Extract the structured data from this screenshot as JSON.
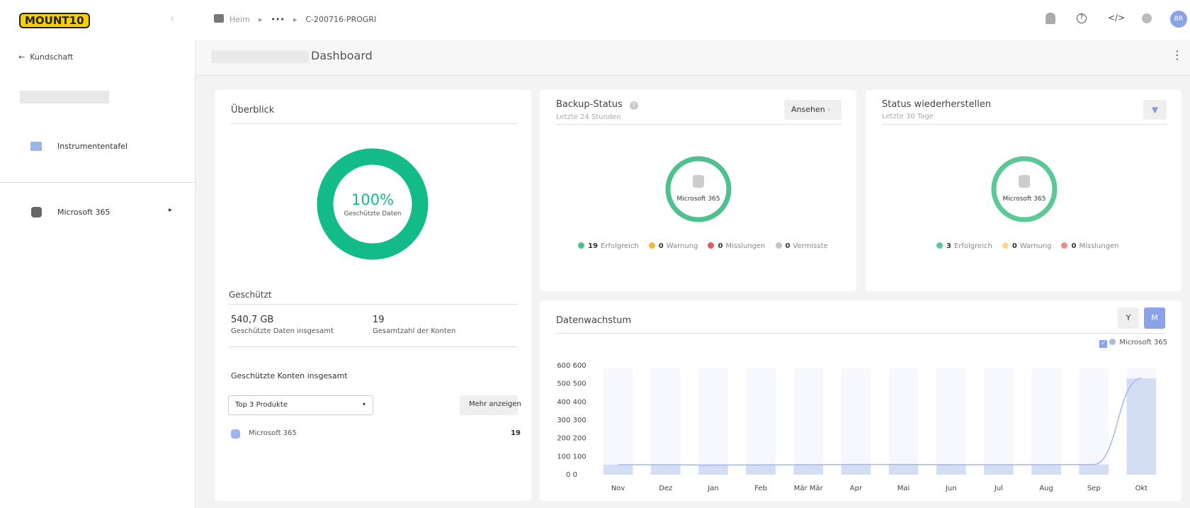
{
  "header": {
    "logo": "MOUNT10",
    "breadcrumb": [
      "Heim",
      "•••",
      "C-200716-PROGRI"
    ],
    "avatar": "BR"
  },
  "sidebar": {
    "back": "Kundschaft",
    "items": [
      "Instrumententafel",
      "Microsoft 365"
    ]
  },
  "page": {
    "title": "Dashboard"
  },
  "overview": {
    "title": "Überblick",
    "donut_value": "100%",
    "donut_label": "Geschützte Daten",
    "section": "Geschützt",
    "stats": [
      {
        "value": "540,7 GB",
        "label": "Geschützte Daten insgesamt"
      },
      {
        "value": "19",
        "label": "Gesamtzahl der Konten"
      }
    ],
    "accounts_title": "Geschützte Konten insgesamt",
    "select": "Top 3 Produkte",
    "more": "Mehr anzeigen",
    "products": [
      {
        "name": "Microsoft 365",
        "count": "19"
      }
    ]
  },
  "backup": {
    "title": "Backup-Status",
    "subtitle": "Letzte 24 Stunden",
    "button": "Ansehen",
    "center": "Microsoft 365",
    "legend": [
      {
        "count": "19",
        "label": "Erfolgreich"
      },
      {
        "count": "0",
        "label": "Warnung"
      },
      {
        "count": "0",
        "label": "Misslungen"
      },
      {
        "count": "0",
        "label": "Vermisste"
      }
    ]
  },
  "restore": {
    "title": "Status wiederherstellen",
    "subtitle": "Letzte 30 Tage",
    "center": "Microsoft 365",
    "legend": [
      {
        "count": "3",
        "label": "Erfolgreich"
      },
      {
        "count": "0",
        "label": "Warnung"
      },
      {
        "count": "0",
        "label": "Misslungen"
      }
    ]
  },
  "growth_buttons": [
    "Y",
    "M"
  ],
  "chart_data": {
    "type": "bar",
    "title": "Datenwachstum",
    "categories": [
      "Nov",
      "Dez",
      "Jan",
      "Feb",
      "Mär Mär",
      "Apr",
      "Mai",
      "Jun",
      "Jul",
      "Aug",
      "Sep",
      "Okt"
    ],
    "series": [
      {
        "name": "Microsoft 365",
        "color": "#d3ddf4",
        "line_color": "#a3b8ec",
        "values": [
          55,
          55,
          53,
          54,
          55,
          56,
          56,
          55,
          55,
          55,
          56,
          530
        ]
      }
    ],
    "ylim": [
      0,
      600
    ],
    "yticks": [
      {
        "value": 0,
        "label": "0 0"
      },
      {
        "value": 100,
        "label": "100 100"
      },
      {
        "value": 200,
        "label": "200 200"
      },
      {
        "value": 300,
        "label": "300 300"
      },
      {
        "value": 400,
        "label": "400 400"
      },
      {
        "value": 500,
        "label": "500 500"
      },
      {
        "value": 600,
        "label": "600 600"
      }
    ]
  }
}
